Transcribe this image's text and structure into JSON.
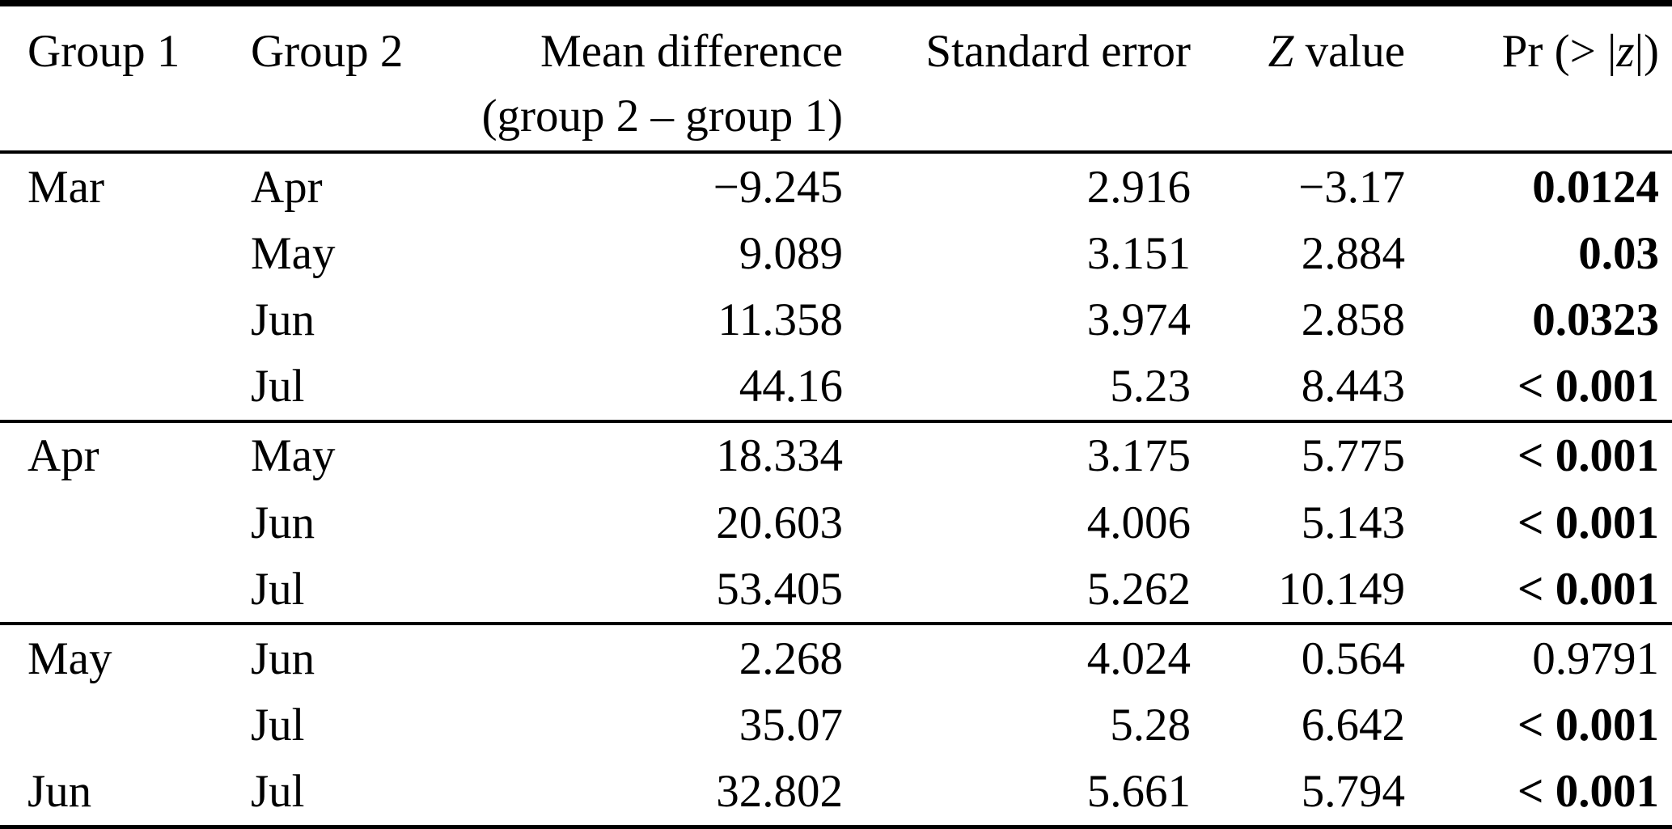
{
  "meta": {
    "background_color": "#ffffff",
    "text_color": "#000000",
    "rule_color": "#000000"
  },
  "table": {
    "headers": {
      "group1": "Group 1",
      "group2": "Group 2",
      "mean_diff_line1": "Mean difference",
      "mean_diff_line2": "(group 2 – group 1)",
      "std_error": "Standard error",
      "z_italic": "Z",
      "z_rest": " value",
      "pr_pre": "Pr (> |",
      "pr_z": "z",
      "pr_post": "|)"
    },
    "groups": [
      {
        "rows": [
          {
            "group1": "Mar",
            "group2": "Apr",
            "mean_diff": "−9.245",
            "std_error": "2.916",
            "z_value": "−3.17",
            "pr": "0.0124",
            "pr_bold": true
          },
          {
            "group1": "",
            "group2": "May",
            "mean_diff": "9.089",
            "std_error": "3.151",
            "z_value": "2.884",
            "pr": "0.03",
            "pr_bold": true
          },
          {
            "group1": "",
            "group2": "Jun",
            "mean_diff": "11.358",
            "std_error": "3.974",
            "z_value": "2.858",
            "pr": "0.0323",
            "pr_bold": true
          },
          {
            "group1": "",
            "group2": "Jul",
            "mean_diff": "44.16",
            "std_error": "5.23",
            "z_value": "8.443",
            "pr": "< 0.001",
            "pr_bold": true
          }
        ]
      },
      {
        "rows": [
          {
            "group1": "Apr",
            "group2": "May",
            "mean_diff": "18.334",
            "std_error": "3.175",
            "z_value": "5.775",
            "pr": "< 0.001",
            "pr_bold": true
          },
          {
            "group1": "",
            "group2": "Jun",
            "mean_diff": "20.603",
            "std_error": "4.006",
            "z_value": "5.143",
            "pr": "< 0.001",
            "pr_bold": true
          },
          {
            "group1": "",
            "group2": "Jul",
            "mean_diff": "53.405",
            "std_error": "5.262",
            "z_value": "10.149",
            "pr": "< 0.001",
            "pr_bold": true
          }
        ]
      },
      {
        "rows": [
          {
            "group1": "May",
            "group2": "Jun",
            "mean_diff": "2.268",
            "std_error": "4.024",
            "z_value": "0.564",
            "pr": "0.9791",
            "pr_bold": false
          },
          {
            "group1": "",
            "group2": "Jul",
            "mean_diff": "35.07",
            "std_error": "5.28",
            "z_value": "6.642",
            "pr": "< 0.001",
            "pr_bold": true
          },
          {
            "group1": "Jun",
            "group2": "Jul",
            "mean_diff": "32.802",
            "std_error": "5.661",
            "z_value": "5.794",
            "pr": "< 0.001",
            "pr_bold": true
          }
        ]
      }
    ]
  }
}
